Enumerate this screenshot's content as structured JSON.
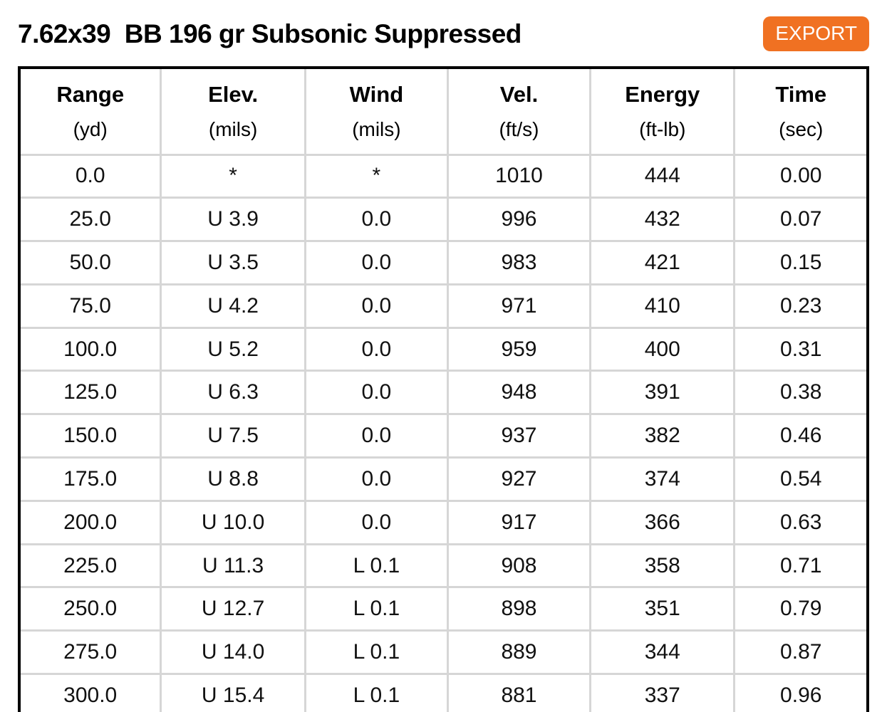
{
  "header": {
    "title": "7.62x39  BB 196 gr Subsonic Suppressed",
    "export_label": "EXPORT"
  },
  "colors": {
    "accent_orange": "#f07122",
    "table_outer_border": "#000000",
    "grid_line": "#d6d6d6",
    "text": "#111111"
  },
  "table": {
    "columns": [
      {
        "label": "Range",
        "unit": "(yd)"
      },
      {
        "label": "Elev.",
        "unit": "(mils)"
      },
      {
        "label": "Wind",
        "unit": "(mils)"
      },
      {
        "label": "Vel.",
        "unit": "(ft/s)"
      },
      {
        "label": "Energy",
        "unit": "(ft-lb)"
      },
      {
        "label": "Time",
        "unit": "(sec)"
      }
    ],
    "rows": [
      [
        "0.0",
        "*",
        "*",
        "1010",
        "444",
        "0.00"
      ],
      [
        "25.0",
        "U 3.9",
        "0.0",
        "996",
        "432",
        "0.07"
      ],
      [
        "50.0",
        "U 3.5",
        "0.0",
        "983",
        "421",
        "0.15"
      ],
      [
        "75.0",
        "U 4.2",
        "0.0",
        "971",
        "410",
        "0.23"
      ],
      [
        "100.0",
        "U 5.2",
        "0.0",
        "959",
        "400",
        "0.31"
      ],
      [
        "125.0",
        "U 6.3",
        "0.0",
        "948",
        "391",
        "0.38"
      ],
      [
        "150.0",
        "U 7.5",
        "0.0",
        "937",
        "382",
        "0.46"
      ],
      [
        "175.0",
        "U 8.8",
        "0.0",
        "927",
        "374",
        "0.54"
      ],
      [
        "200.0",
        "U 10.0",
        "0.0",
        "917",
        "366",
        "0.63"
      ],
      [
        "225.0",
        "U 11.3",
        "L 0.1",
        "908",
        "358",
        "0.71"
      ],
      [
        "250.0",
        "U 12.7",
        "L 0.1",
        "898",
        "351",
        "0.79"
      ],
      [
        "275.0",
        "U 14.0",
        "L 0.1",
        "889",
        "344",
        "0.87"
      ],
      [
        "300.0",
        "U 15.4",
        "L 0.1",
        "881",
        "337",
        "0.96"
      ]
    ]
  }
}
